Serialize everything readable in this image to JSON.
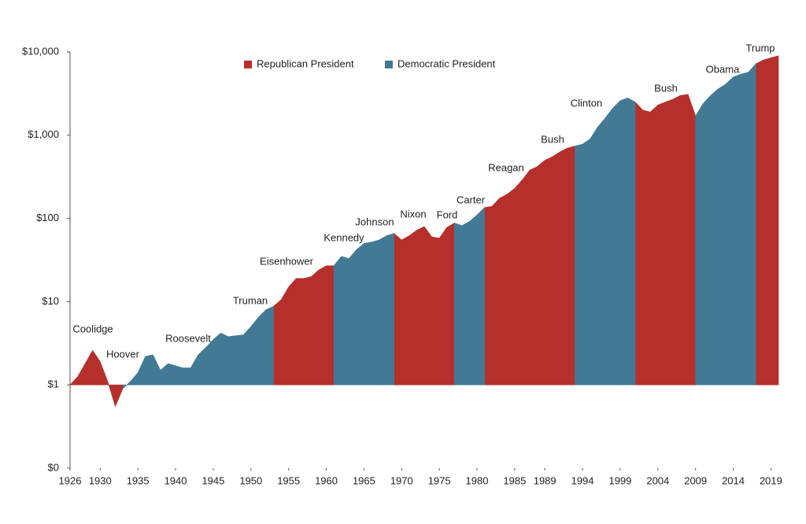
{
  "chart_data": {
    "type": "area",
    "log_scale": true,
    "x": [
      1926,
      1927,
      1928,
      1929,
      1930,
      1931,
      1932,
      1933,
      1934,
      1935,
      1936,
      1937,
      1938,
      1939,
      1940,
      1941,
      1942,
      1943,
      1944,
      1945,
      1946,
      1947,
      1948,
      1949,
      1950,
      1951,
      1952,
      1953,
      1954,
      1955,
      1956,
      1957,
      1958,
      1959,
      1960,
      1961,
      1962,
      1963,
      1964,
      1965,
      1966,
      1967,
      1968,
      1969,
      1970,
      1971,
      1972,
      1973,
      1974,
      1975,
      1976,
      1977,
      1978,
      1979,
      1980,
      1981,
      1982,
      1983,
      1984,
      1985,
      1986,
      1987,
      1988,
      1989,
      1990,
      1991,
      1992,
      1993,
      1994,
      1995,
      1996,
      1997,
      1998,
      1999,
      2000,
      2001,
      2002,
      2003,
      2004,
      2005,
      2006,
      2007,
      2008,
      2009,
      2010,
      2011,
      2012,
      2013,
      2014,
      2015,
      2016,
      2017,
      2018,
      2019,
      2020
    ],
    "series": [
      {
        "name": "Republican President",
        "color": "#b5302a",
        "values": [
          1.0,
          1.25,
          1.8,
          2.6,
          1.9,
          1.1,
          0.55,
          0.9,
          null,
          null,
          null,
          null,
          null,
          null,
          null,
          null,
          null,
          null,
          null,
          null,
          null,
          null,
          null,
          null,
          null,
          null,
          null,
          8.8,
          10.5,
          15,
          19,
          19,
          20,
          24,
          27,
          27,
          null,
          null,
          null,
          null,
          null,
          null,
          null,
          66,
          55,
          62,
          72,
          80,
          60,
          58,
          78,
          88,
          null,
          null,
          null,
          135,
          140,
          175,
          195,
          230,
          290,
          380,
          420,
          500,
          550,
          630,
          700,
          740,
          null,
          null,
          null,
          null,
          null,
          null,
          null,
          2500,
          2000,
          1900,
          2300,
          2500,
          2700,
          3000,
          3100,
          1700,
          null,
          null,
          null,
          null,
          null,
          null,
          null,
          7200,
          8000,
          8500,
          9000
        ]
      },
      {
        "name": "Democratic President",
        "color": "#427a96",
        "values": [
          null,
          null,
          null,
          null,
          null,
          null,
          null,
          0.9,
          1.1,
          1.4,
          2.2,
          2.3,
          1.5,
          1.8,
          1.7,
          1.6,
          1.6,
          2.3,
          2.8,
          3.5,
          4.2,
          3.8,
          3.9,
          4.0,
          5.0,
          6.5,
          8.0,
          8.8,
          null,
          null,
          null,
          null,
          null,
          null,
          null,
          27,
          35,
          33,
          42,
          50,
          52,
          55,
          62,
          66,
          null,
          null,
          null,
          null,
          null,
          null,
          null,
          88,
          82,
          92,
          110,
          135,
          null,
          null,
          null,
          null,
          null,
          null,
          null,
          null,
          null,
          null,
          null,
          740,
          780,
          900,
          1250,
          1600,
          2100,
          2600,
          2800,
          2500,
          null,
          null,
          null,
          null,
          null,
          null,
          null,
          1700,
          2400,
          3000,
          3600,
          4100,
          5000,
          5400,
          5700,
          7200,
          null,
          null,
          null
        ]
      }
    ],
    "xlim": [
      1926,
      2020
    ],
    "xticks": [
      1926,
      1930,
      1935,
      1940,
      1945,
      1950,
      1955,
      1960,
      1965,
      1970,
      1975,
      1980,
      1985,
      1989,
      1994,
      1999,
      2004,
      2009,
      2014,
      2019
    ],
    "ylim": [
      0.1,
      10000
    ],
    "yticks": [
      {
        "value": 0.1,
        "label": "$0"
      },
      {
        "value": 1,
        "label": "$1"
      },
      {
        "value": 10,
        "label": "$10"
      },
      {
        "value": 100,
        "label": "$100"
      },
      {
        "value": 1000,
        "label": "$1,000"
      },
      {
        "value": 10000,
        "label": "$10,000"
      }
    ],
    "grid": false,
    "legend": "top",
    "annotations": [
      "Coolidge",
      "Hoover",
      "Roosevelt",
      "Truman",
      "Eisenhower",
      "Kennedy",
      "Johnson",
      "Nixon",
      "Ford",
      "Carter",
      "Reagan",
      "Bush",
      "Clinton",
      "Bush",
      "Obama",
      "Trump"
    ]
  }
}
